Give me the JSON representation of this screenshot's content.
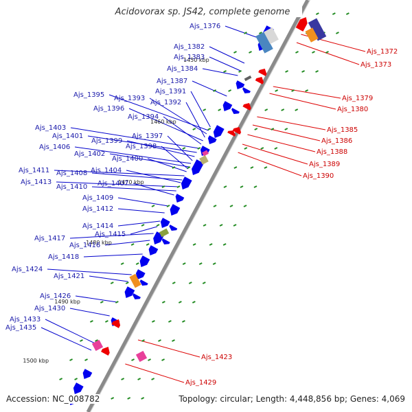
{
  "title": "Acidovorax sp. JS42, complete genome",
  "accession_label": "Accession:",
  "accession": "NC_008782",
  "summary": "Topology: circular; Length: 4,448,856 bp; Genes: 4,069",
  "colors": {
    "backbone": "#8a8a8a",
    "forward_gene": "#0000ee",
    "reverse_gene": "#ee0000",
    "tick": "#228b22",
    "left_label": "#1a1aaa",
    "right_label": "#cc0000",
    "magenta": "#e8409a",
    "orange": "#f09020",
    "olive": "#8aa040",
    "tan": "#b8b070",
    "navy": "#3838a0"
  },
  "scale_ticks": [
    "1450 kbp",
    "1460 kbp",
    "1470 kbp",
    "1480 kbp",
    "1490 kbp",
    "1500 kbp"
  ],
  "left_labels": [
    "Ajs_1376",
    "Ajs_1382",
    "Ajs_1383",
    "Ajs_1384",
    "Ajs_1387",
    "Ajs_1391",
    "Ajs_1395",
    "Ajs_1393",
    "Ajs_1392",
    "Ajs_1396",
    "Ajs_1394",
    "Ajs_1403",
    "Ajs_1401",
    "Ajs_1399",
    "Ajs_1397",
    "Ajs_1406",
    "Ajs_1402",
    "Ajs_1398",
    "Ajs_1400",
    "Ajs_1411",
    "Ajs_1408",
    "Ajs_1404",
    "Ajs_1413",
    "Ajs_1410",
    "Ajs_1407",
    "Ajs_1409",
    "Ajs_1412",
    "Ajs_1414",
    "Ajs_1415",
    "Ajs_1417",
    "Ajs_1416",
    "Ajs_1418",
    "Ajs_1424",
    "Ajs_1421",
    "Ajs_1426",
    "Ajs_1430",
    "Ajs_1433",
    "Ajs_1435"
  ],
  "right_labels": [
    "Ajs_1372",
    "Ajs_1373",
    "Ajs_1379",
    "Ajs_1380",
    "Ajs_1385",
    "Ajs_1386",
    "Ajs_1388",
    "Ajs_1389",
    "Ajs_1390",
    "Ajs_1423",
    "Ajs_1429"
  ]
}
